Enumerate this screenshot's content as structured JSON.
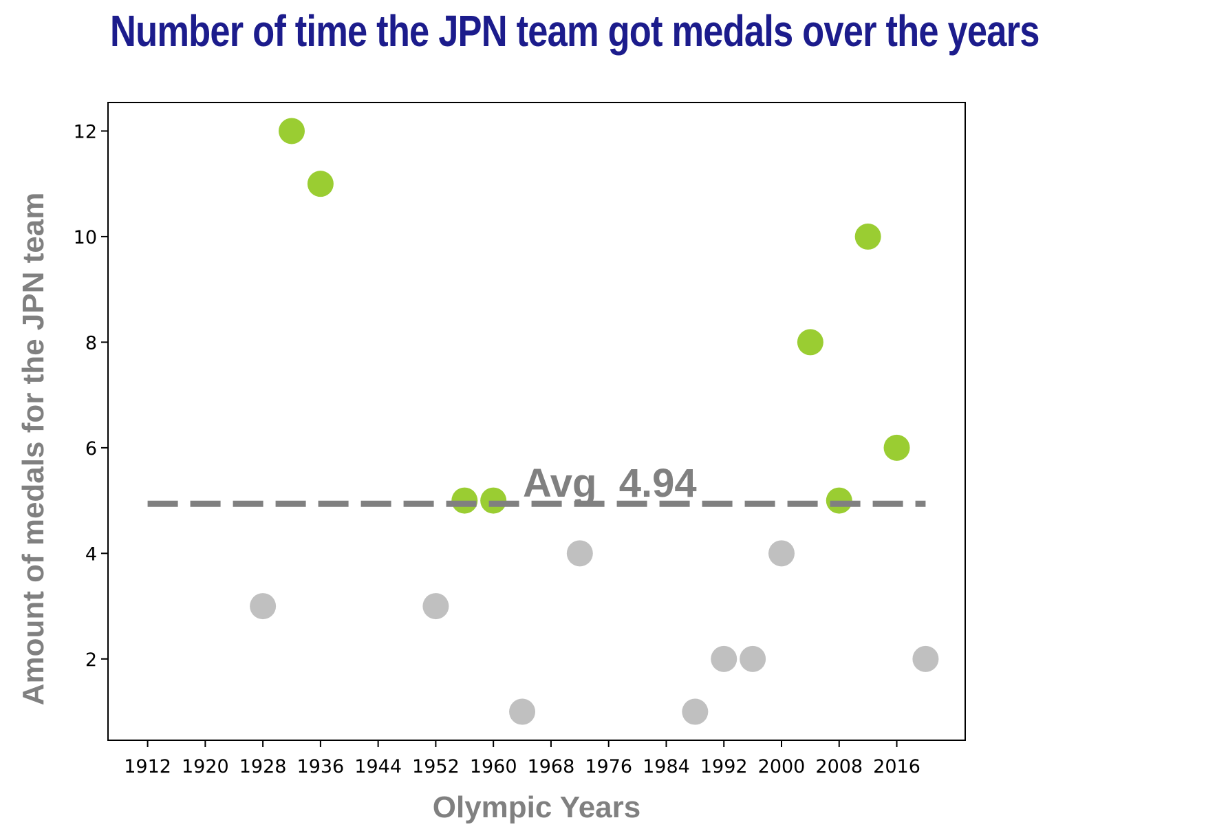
{
  "chart_data": {
    "type": "scatter",
    "title": "Number of time the JPN team got medals over the years",
    "xlabel": "Olympic Years",
    "ylabel": "Amount of medals for the JPN team",
    "xlim": [
      1906.5,
      2025.5
    ],
    "ylim": [
      0.46,
      12.54
    ],
    "xticks": [
      1912,
      1920,
      1928,
      1936,
      1944,
      1952,
      1960,
      1968,
      1976,
      1984,
      1992,
      2000,
      2008,
      2016
    ],
    "yticks": [
      2,
      4,
      6,
      8,
      10,
      12
    ],
    "grid": false,
    "legend": "none",
    "average": {
      "value": 4.94,
      "label": "Avg  4.94",
      "color": "#808080",
      "style": "dashed"
    },
    "colors": {
      "above_or_at_average": "#9acd32",
      "below_average": "#c0c0c0"
    },
    "points": [
      {
        "x": 1928,
        "y": 3
      },
      {
        "x": 1932,
        "y": 12
      },
      {
        "x": 1936,
        "y": 11
      },
      {
        "x": 1952,
        "y": 3
      },
      {
        "x": 1956,
        "y": 5
      },
      {
        "x": 1960,
        "y": 5
      },
      {
        "x": 1964,
        "y": 1
      },
      {
        "x": 1972,
        "y": 4
      },
      {
        "x": 1988,
        "y": 1
      },
      {
        "x": 1992,
        "y": 2
      },
      {
        "x": 1996,
        "y": 2
      },
      {
        "x": 2000,
        "y": 4
      },
      {
        "x": 2004,
        "y": 8
      },
      {
        "x": 2008,
        "y": 5
      },
      {
        "x": 2012,
        "y": 10
      },
      {
        "x": 2016,
        "y": 6
      },
      {
        "x": 2020,
        "y": 2
      }
    ]
  }
}
